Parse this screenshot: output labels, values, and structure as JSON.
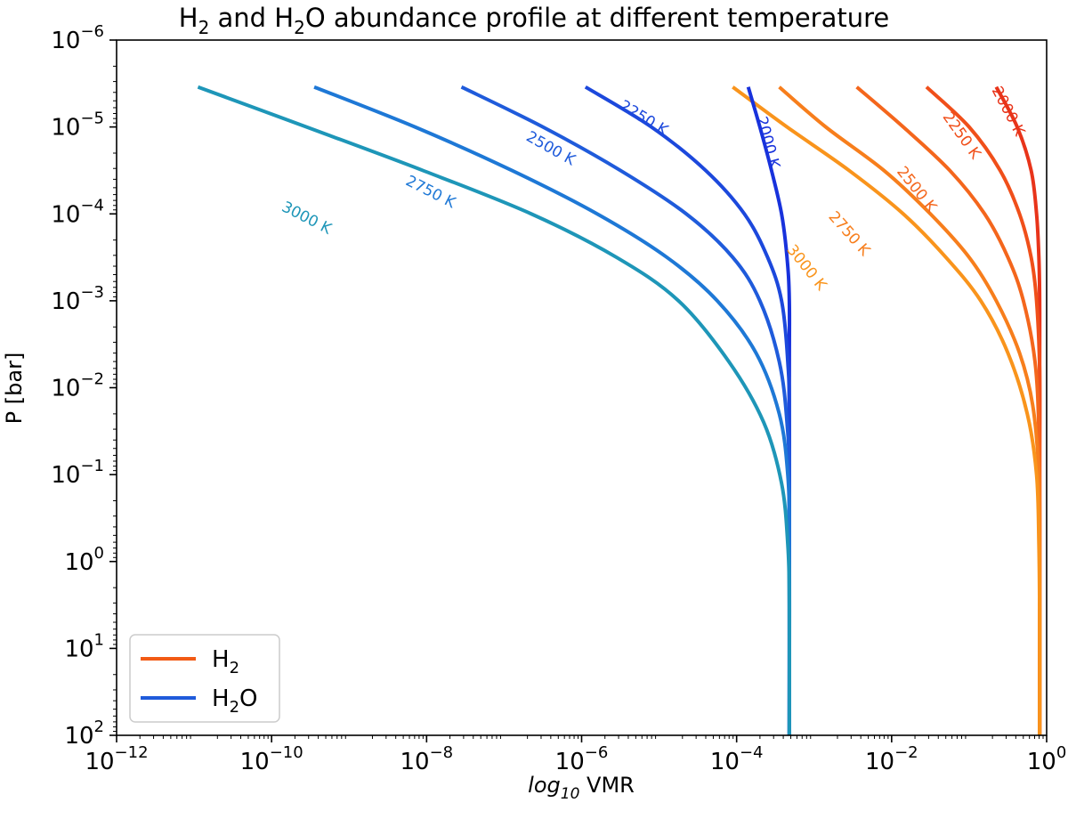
{
  "chart_data": {
    "type": "line",
    "title": {
      "prefix": "H",
      "sub1": "2",
      "mid": " and H",
      "sub2": "2",
      "suffix": "O abundance profile at different temperature"
    },
    "xlabel": {
      "italic_base": "log",
      "italic_sub": "10",
      "rest": " VMR"
    },
    "ylabel": "P [bar]",
    "x_scale": "log",
    "y_scale": "log",
    "y_inverted": true,
    "xlim": [
      1e-12,
      1
    ],
    "ylim": [
      100,
      1e-06
    ],
    "x_ticks": [
      {
        "base": "10",
        "exp": "−12",
        "value": -12
      },
      {
        "base": "10",
        "exp": "−10",
        "value": -10
      },
      {
        "base": "10",
        "exp": "−8",
        "value": -8
      },
      {
        "base": "10",
        "exp": "−6",
        "value": -6
      },
      {
        "base": "10",
        "exp": "−4",
        "value": -4
      },
      {
        "base": "10",
        "exp": "−2",
        "value": -2
      },
      {
        "base": "10",
        "exp": "0",
        "value": 0
      }
    ],
    "y_ticks": [
      {
        "base": "10",
        "exp": "−6",
        "value": -6
      },
      {
        "base": "10",
        "exp": "−5",
        "value": -5
      },
      {
        "base": "10",
        "exp": "−4",
        "value": -4
      },
      {
        "base": "10",
        "exp": "−3",
        "value": -3
      },
      {
        "base": "10",
        "exp": "−2",
        "value": -2
      },
      {
        "base": "10",
        "exp": "−1",
        "value": -1
      },
      {
        "base": "10",
        "exp": "0",
        "value": 0
      },
      {
        "base": "10",
        "exp": "1",
        "value": 1
      },
      {
        "base": "10",
        "exp": "2",
        "value": 2
      }
    ],
    "grid": false,
    "legend_position": "bottom-left",
    "legend": [
      {
        "base": "H",
        "sub": "2",
        "rest": "",
        "color": "#F25A14"
      },
      {
        "base": "H",
        "sub": "2",
        "rest": "O",
        "color": "#1F5BDB"
      }
    ],
    "series": [
      {
        "name": "H2",
        "label": "2000 K",
        "color": "#E8341A",
        "points": [
          [
            -0.65,
            -5.46
          ],
          [
            -0.38,
            -5.0
          ],
          [
            -0.2,
            -4.5
          ],
          [
            -0.13,
            -4.0
          ],
          [
            -0.1,
            -3.5
          ],
          [
            -0.09,
            -3.0
          ],
          [
            -0.09,
            -2.0
          ],
          [
            -0.09,
            2.0
          ]
        ]
      },
      {
        "name": "H2",
        "label": "2250 K",
        "color": "#F04F1A",
        "points": [
          [
            -1.55,
            -5.46
          ],
          [
            -1.0,
            -5.0
          ],
          [
            -0.6,
            -4.5
          ],
          [
            -0.35,
            -4.0
          ],
          [
            -0.2,
            -3.5
          ],
          [
            -0.13,
            -3.0
          ],
          [
            -0.09,
            -2.2
          ],
          [
            -0.09,
            -1.0
          ],
          [
            -0.09,
            2.0
          ]
        ]
      },
      {
        "name": "H2",
        "label": "2500 K",
        "color": "#F4661C",
        "points": [
          [
            -2.45,
            -5.46
          ],
          [
            -1.85,
            -5.0
          ],
          [
            -1.25,
            -4.5
          ],
          [
            -0.8,
            -4.0
          ],
          [
            -0.5,
            -3.5
          ],
          [
            -0.3,
            -3.0
          ],
          [
            -0.15,
            -2.3
          ],
          [
            -0.1,
            -1.5
          ],
          [
            -0.09,
            -0.5
          ],
          [
            -0.09,
            2.0
          ]
        ]
      },
      {
        "name": "H2",
        "label": "2750 K",
        "color": "#F77E1C",
        "points": [
          [
            -3.45,
            -5.46
          ],
          [
            -2.85,
            -5.0
          ],
          [
            -2.1,
            -4.5
          ],
          [
            -1.5,
            -4.0
          ],
          [
            -1.0,
            -3.5
          ],
          [
            -0.65,
            -3.0
          ],
          [
            -0.35,
            -2.4
          ],
          [
            -0.18,
            -1.8
          ],
          [
            -0.1,
            -1.0
          ],
          [
            -0.09,
            0.0
          ],
          [
            -0.09,
            2.0
          ]
        ]
      },
      {
        "name": "H2",
        "label": "3000 K",
        "color": "#F9941C",
        "points": [
          [
            -4.05,
            -5.46
          ],
          [
            -3.35,
            -5.0
          ],
          [
            -2.55,
            -4.5
          ],
          [
            -1.85,
            -4.0
          ],
          [
            -1.3,
            -3.5
          ],
          [
            -0.85,
            -3.0
          ],
          [
            -0.5,
            -2.4
          ],
          [
            -0.25,
            -1.7
          ],
          [
            -0.13,
            -1.0
          ],
          [
            -0.1,
            -0.2
          ],
          [
            -0.09,
            0.7
          ],
          [
            -0.09,
            2.0
          ]
        ]
      },
      {
        "name": "H2O",
        "label": "2000 K",
        "color": "#1832DC",
        "points": [
          [
            -3.85,
            -5.46
          ],
          [
            -3.7,
            -5.0
          ],
          [
            -3.55,
            -4.5
          ],
          [
            -3.42,
            -4.0
          ],
          [
            -3.35,
            -3.5
          ],
          [
            -3.32,
            -3.0
          ],
          [
            -3.32,
            -2.0
          ],
          [
            -3.32,
            2.0
          ]
        ]
      },
      {
        "name": "H2O",
        "label": "2250 K",
        "color": "#1C48DC",
        "points": [
          [
            -5.95,
            -5.46
          ],
          [
            -5.1,
            -5.0
          ],
          [
            -4.4,
            -4.5
          ],
          [
            -3.9,
            -4.0
          ],
          [
            -3.6,
            -3.5
          ],
          [
            -3.42,
            -3.0
          ],
          [
            -3.34,
            -2.3
          ],
          [
            -3.32,
            -1.5
          ],
          [
            -3.32,
            2.0
          ]
        ]
      },
      {
        "name": "H2O",
        "label": "2500 K",
        "color": "#1F5BDB",
        "points": [
          [
            -7.55,
            -5.46
          ],
          [
            -6.5,
            -5.0
          ],
          [
            -5.5,
            -4.5
          ],
          [
            -4.65,
            -4.0
          ],
          [
            -4.05,
            -3.5
          ],
          [
            -3.7,
            -3.0
          ],
          [
            -3.45,
            -2.3
          ],
          [
            -3.35,
            -1.6
          ],
          [
            -3.32,
            -0.8
          ],
          [
            -3.32,
            2.0
          ]
        ]
      },
      {
        "name": "H2O",
        "label": "2750 K",
        "color": "#1E78D6",
        "points": [
          [
            -9.45,
            -5.46
          ],
          [
            -8.15,
            -5.0
          ],
          [
            -6.9,
            -4.5
          ],
          [
            -5.8,
            -4.0
          ],
          [
            -4.9,
            -3.5
          ],
          [
            -4.25,
            -3.0
          ],
          [
            -3.75,
            -2.4
          ],
          [
            -3.45,
            -1.7
          ],
          [
            -3.34,
            -1.0
          ],
          [
            -3.32,
            -0.2
          ],
          [
            -3.32,
            2.0
          ]
        ]
      },
      {
        "name": "H2O",
        "label": "3000 K",
        "color": "#1E96B8",
        "points": [
          [
            -10.95,
            -5.46
          ],
          [
            -9.55,
            -5.0
          ],
          [
            -8.05,
            -4.5
          ],
          [
            -6.65,
            -4.0
          ],
          [
            -5.55,
            -3.5
          ],
          [
            -4.75,
            -3.0
          ],
          [
            -4.1,
            -2.3
          ],
          [
            -3.65,
            -1.6
          ],
          [
            -3.42,
            -0.9
          ],
          [
            -3.34,
            -0.2
          ],
          [
            -3.32,
            0.5
          ],
          [
            -3.32,
            2.0
          ]
        ]
      }
    ],
    "curve_labels": [
      {
        "text": "2000 K",
        "color": "#E8341A",
        "x": -0.5,
        "y": -5.18
      },
      {
        "text": "2250 K",
        "color": "#F04F1A",
        "x": -1.1,
        "y": -4.9
      },
      {
        "text": "2500 K",
        "color": "#F4661C",
        "x": -1.68,
        "y": -4.28
      },
      {
        "text": "2750 K",
        "color": "#F77E1C",
        "x": -2.55,
        "y": -3.77
      },
      {
        "text": "3000 K",
        "color": "#F9941C",
        "x": -3.1,
        "y": -3.38
      },
      {
        "text": "2000 K",
        "color": "#1832DC",
        "x": -3.6,
        "y": -4.82
      },
      {
        "text": "2250 K",
        "color": "#1C48DC",
        "x": -5.2,
        "y": -5.1
      },
      {
        "text": "2500 K",
        "color": "#1F5BDB",
        "x": -6.4,
        "y": -4.75
      },
      {
        "text": "2750 K",
        "color": "#1E78D6",
        "x": -7.95,
        "y": -4.25
      },
      {
        "text": "3000 K",
        "color": "#1E96B8",
        "x": -9.55,
        "y": -3.95
      }
    ]
  }
}
